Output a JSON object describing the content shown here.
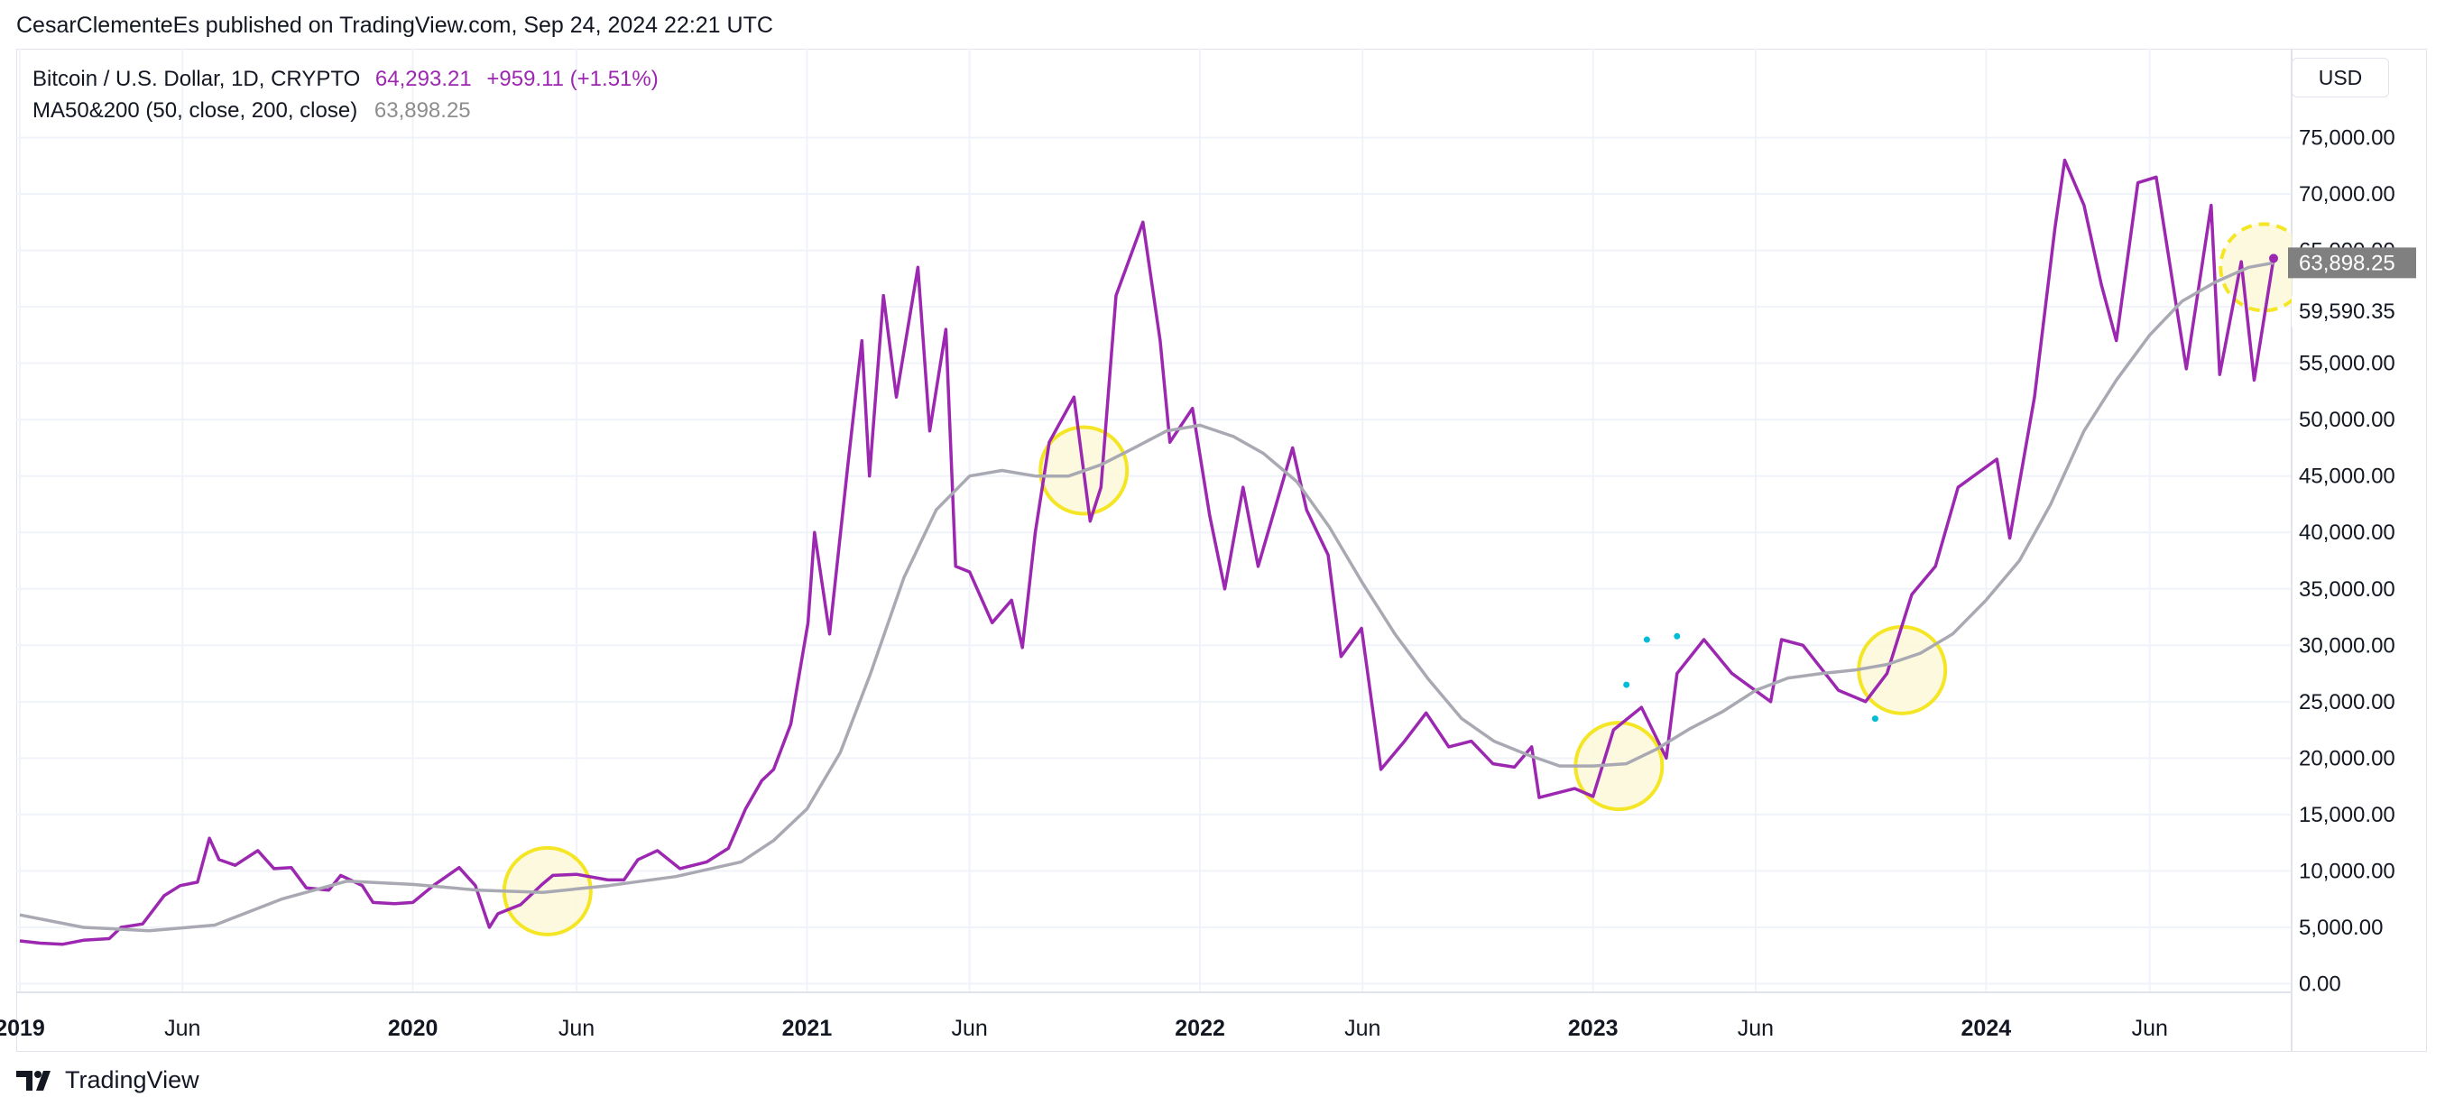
{
  "attribution": "CesarClementeEs published on TradingView.com, Sep 24, 2024 22:21 UTC",
  "legend": {
    "symbol": "Bitcoin / U.S. Dollar, 1D, CRYPTO",
    "price": "64,293.21",
    "change": "+959.11 (+1.51%)",
    "indicator": "MA50&200 (50, close, 200, close)",
    "indicator_value": "63,898.25"
  },
  "currency": "USD",
  "footer_brand": "TradingView",
  "colors": {
    "price_line": "#9c27b0",
    "ma_line": "#a9a9b3",
    "highlight_circle": "#f5e625",
    "highlight_fill": "#fbf8d9",
    "dots": "#00bcd4",
    "grid": "#f0f3fa",
    "axis_text": "#131722",
    "price_label_bg": "#808080"
  },
  "icons": [
    "tradingview-logo-icon"
  ],
  "chart_data": {
    "type": "line",
    "title": "",
    "x_axis": {
      "tick_labels": [
        "2019",
        "Jun",
        "2020",
        "Jun",
        "2021",
        "Jun",
        "2022",
        "Jun",
        "2023",
        "Jun",
        "2024",
        "Jun"
      ],
      "tick_dates": [
        "2019-01-01",
        "2019-06-01",
        "2020-01-01",
        "2020-06-01",
        "2021-01-01",
        "2021-06-01",
        "2022-01-01",
        "2022-06-01",
        "2023-01-01",
        "2023-06-01",
        "2024-01-01",
        "2024-06-01"
      ],
      "range": [
        "2019-01-01",
        "2024-09-24"
      ]
    },
    "y_axis": {
      "tick_labels": [
        "0.00",
        "5,000.00",
        "10,000.00",
        "15,000.00",
        "20,000.00",
        "25,000.00",
        "30,000.00",
        "35,000.00",
        "40,000.00",
        "45,000.00",
        "50,000.00",
        "55,000.00",
        "60,000.00",
        "65,000.00",
        "70,000.00",
        "75,000.00"
      ],
      "ticks": [
        0,
        5000,
        10000,
        15000,
        20000,
        25000,
        30000,
        35000,
        40000,
        45000,
        50000,
        55000,
        60000,
        65000,
        70000,
        75000
      ],
      "range": [
        -3000,
        80000
      ],
      "extra_label": "59,590.35",
      "extra_value": 59590.35,
      "position": "right"
    },
    "current_label": "63,898.25",
    "current_value": 63898.25,
    "grid": true,
    "series": [
      {
        "name": "Bitcoin / U.S. Dollar",
        "points": [
          [
            "2019-01-01",
            3800
          ],
          [
            "2019-01-20",
            3600
          ],
          [
            "2019-02-10",
            3500
          ],
          [
            "2019-03-01",
            3850
          ],
          [
            "2019-03-25",
            4000
          ],
          [
            "2019-04-05",
            5000
          ],
          [
            "2019-04-25",
            5300
          ],
          [
            "2019-05-15",
            7800
          ],
          [
            "2019-05-30",
            8700
          ],
          [
            "2019-06-15",
            9000
          ],
          [
            "2019-06-26",
            12900
          ],
          [
            "2019-07-05",
            11000
          ],
          [
            "2019-07-20",
            10500
          ],
          [
            "2019-08-10",
            11800
          ],
          [
            "2019-08-25",
            10200
          ],
          [
            "2019-09-10",
            10300
          ],
          [
            "2019-09-24",
            8500
          ],
          [
            "2019-10-15",
            8300
          ],
          [
            "2019-10-26",
            9600
          ],
          [
            "2019-11-15",
            8700
          ],
          [
            "2019-11-25",
            7200
          ],
          [
            "2019-12-15",
            7100
          ],
          [
            "2020-01-01",
            7200
          ],
          [
            "2020-01-20",
            8700
          ],
          [
            "2020-02-13",
            10300
          ],
          [
            "2020-02-28",
            8700
          ],
          [
            "2020-03-12",
            5000
          ],
          [
            "2020-03-20",
            6200
          ],
          [
            "2020-04-10",
            7000
          ],
          [
            "2020-04-30",
            8800
          ],
          [
            "2020-05-10",
            9600
          ],
          [
            "2020-06-01",
            9700
          ],
          [
            "2020-06-30",
            9200
          ],
          [
            "2020-07-15",
            9200
          ],
          [
            "2020-07-28",
            11000
          ],
          [
            "2020-08-15",
            11800
          ],
          [
            "2020-09-05",
            10200
          ],
          [
            "2020-09-30",
            10800
          ],
          [
            "2020-10-20",
            12000
          ],
          [
            "2020-11-05",
            15500
          ],
          [
            "2020-11-20",
            18000
          ],
          [
            "2020-12-01",
            19000
          ],
          [
            "2020-12-17",
            23000
          ],
          [
            "2021-01-02",
            32000
          ],
          [
            "2021-01-08",
            40000
          ],
          [
            "2021-01-22",
            31000
          ],
          [
            "2021-02-08",
            46000
          ],
          [
            "2021-02-21",
            57000
          ],
          [
            "2021-02-28",
            45000
          ],
          [
            "2021-03-13",
            61000
          ],
          [
            "2021-03-25",
            52000
          ],
          [
            "2021-04-14",
            63500
          ],
          [
            "2021-04-25",
            49000
          ],
          [
            "2021-05-10",
            58000
          ],
          [
            "2021-05-19",
            37000
          ],
          [
            "2021-06-01",
            36500
          ],
          [
            "2021-06-22",
            32000
          ],
          [
            "2021-07-10",
            34000
          ],
          [
            "2021-07-20",
            29800
          ],
          [
            "2021-08-01",
            40000
          ],
          [
            "2021-08-14",
            48000
          ],
          [
            "2021-09-06",
            52000
          ],
          [
            "2021-09-21",
            41000
          ],
          [
            "2021-10-01",
            44000
          ],
          [
            "2021-10-15",
            61000
          ],
          [
            "2021-11-09",
            67500
          ],
          [
            "2021-11-25",
            57000
          ],
          [
            "2021-12-04",
            48000
          ],
          [
            "2021-12-25",
            51000
          ],
          [
            "2022-01-10",
            41500
          ],
          [
            "2022-01-24",
            35000
          ],
          [
            "2022-02-10",
            44000
          ],
          [
            "2022-02-24",
            37000
          ],
          [
            "2022-03-28",
            47500
          ],
          [
            "2022-04-10",
            42000
          ],
          [
            "2022-04-30",
            38000
          ],
          [
            "2022-05-12",
            29000
          ],
          [
            "2022-05-31",
            31500
          ],
          [
            "2022-06-18",
            19000
          ],
          [
            "2022-07-10",
            21500
          ],
          [
            "2022-07-30",
            24000
          ],
          [
            "2022-08-20",
            21000
          ],
          [
            "2022-09-10",
            21500
          ],
          [
            "2022-09-30",
            19500
          ],
          [
            "2022-10-20",
            19200
          ],
          [
            "2022-11-05",
            21000
          ],
          [
            "2022-11-12",
            16500
          ],
          [
            "2022-12-15",
            17300
          ],
          [
            "2023-01-01",
            16600
          ],
          [
            "2023-01-20",
            22500
          ],
          [
            "2023-02-15",
            24500
          ],
          [
            "2023-03-10",
            20000
          ],
          [
            "2023-03-20",
            27500
          ],
          [
            "2023-04-14",
            30500
          ],
          [
            "2023-05-10",
            27500
          ],
          [
            "2023-06-15",
            25000
          ],
          [
            "2023-06-25",
            30500
          ],
          [
            "2023-07-15",
            30000
          ],
          [
            "2023-08-17",
            26000
          ],
          [
            "2023-09-11",
            25000
          ],
          [
            "2023-10-01",
            27500
          ],
          [
            "2023-10-24",
            34500
          ],
          [
            "2023-11-15",
            37000
          ],
          [
            "2023-12-06",
            44000
          ],
          [
            "2024-01-11",
            46500
          ],
          [
            "2024-01-23",
            39500
          ],
          [
            "2024-02-15",
            52000
          ],
          [
            "2024-03-05",
            67000
          ],
          [
            "2024-03-14",
            73000
          ],
          [
            "2024-04-01",
            69000
          ],
          [
            "2024-04-17",
            62000
          ],
          [
            "2024-05-01",
            57000
          ],
          [
            "2024-05-21",
            71000
          ],
          [
            "2024-06-07",
            71500
          ],
          [
            "2024-06-25",
            60500
          ],
          [
            "2024-07-05",
            54500
          ],
          [
            "2024-07-28",
            69000
          ],
          [
            "2024-08-05",
            54000
          ],
          [
            "2024-08-25",
            64000
          ],
          [
            "2024-09-06",
            53500
          ],
          [
            "2024-09-24",
            64293
          ]
        ]
      },
      {
        "name": "MA50&200",
        "points": [
          [
            "2019-01-01",
            6100
          ],
          [
            "2019-03-01",
            5000
          ],
          [
            "2019-05-01",
            4700
          ],
          [
            "2019-07-01",
            5200
          ],
          [
            "2019-09-01",
            7500
          ],
          [
            "2019-11-01",
            9100
          ],
          [
            "2020-01-01",
            8800
          ],
          [
            "2020-03-01",
            8300
          ],
          [
            "2020-05-01",
            8100
          ],
          [
            "2020-07-01",
            8700
          ],
          [
            "2020-09-01",
            9500
          ],
          [
            "2020-11-01",
            10800
          ],
          [
            "2020-12-01",
            12700
          ],
          [
            "2021-01-01",
            15500
          ],
          [
            "2021-02-01",
            20500
          ],
          [
            "2021-03-01",
            27500
          ],
          [
            "2021-04-01",
            36000
          ],
          [
            "2021-05-01",
            42000
          ],
          [
            "2021-06-01",
            45000
          ],
          [
            "2021-07-01",
            45500
          ],
          [
            "2021-08-01",
            45000
          ],
          [
            "2021-09-01",
            45000
          ],
          [
            "2021-10-01",
            46000
          ],
          [
            "2021-11-01",
            47500
          ],
          [
            "2021-12-01",
            49000
          ],
          [
            "2022-01-01",
            49500
          ],
          [
            "2022-02-01",
            48500
          ],
          [
            "2022-03-01",
            47000
          ],
          [
            "2022-04-01",
            44500
          ],
          [
            "2022-05-01",
            40500
          ],
          [
            "2022-06-01",
            35500
          ],
          [
            "2022-07-01",
            31000
          ],
          [
            "2022-08-01",
            27000
          ],
          [
            "2022-09-01",
            23500
          ],
          [
            "2022-10-01",
            21500
          ],
          [
            "2022-11-01",
            20300
          ],
          [
            "2022-12-01",
            19300
          ],
          [
            "2023-01-01",
            19300
          ],
          [
            "2023-02-01",
            19500
          ],
          [
            "2023-03-01",
            20800
          ],
          [
            "2023-04-01",
            22600
          ],
          [
            "2023-05-01",
            24100
          ],
          [
            "2023-06-01",
            26000
          ],
          [
            "2023-07-01",
            27100
          ],
          [
            "2023-08-01",
            27500
          ],
          [
            "2023-09-01",
            27800
          ],
          [
            "2023-10-01",
            28300
          ],
          [
            "2023-11-01",
            29300
          ],
          [
            "2023-12-01",
            31000
          ],
          [
            "2024-01-01",
            34000
          ],
          [
            "2024-02-01",
            37500
          ],
          [
            "2024-03-01",
            42500
          ],
          [
            "2024-04-01",
            49000
          ],
          [
            "2024-05-01",
            53500
          ],
          [
            "2024-06-01",
            57500
          ],
          [
            "2024-07-01",
            60500
          ],
          [
            "2024-08-01",
            62200
          ],
          [
            "2024-09-01",
            63500
          ],
          [
            "2024-09-24",
            63898
          ]
        ]
      }
    ],
    "highlight_circles": [
      {
        "date": "2020-05-05",
        "value": 8200
      },
      {
        "date": "2021-09-15",
        "value": 45500
      },
      {
        "date": "2023-01-25",
        "value": 19300
      },
      {
        "date": "2023-10-15",
        "value": 27800
      },
      {
        "date": "2024-09-15",
        "value": 63500,
        "dashed": true
      }
    ],
    "dots": [
      {
        "date": "2023-02-01",
        "value": 26500
      },
      {
        "date": "2023-02-20",
        "value": 30500
      },
      {
        "date": "2023-03-20",
        "value": 30800
      },
      {
        "date": "2023-09-20",
        "value": 23500
      }
    ]
  }
}
